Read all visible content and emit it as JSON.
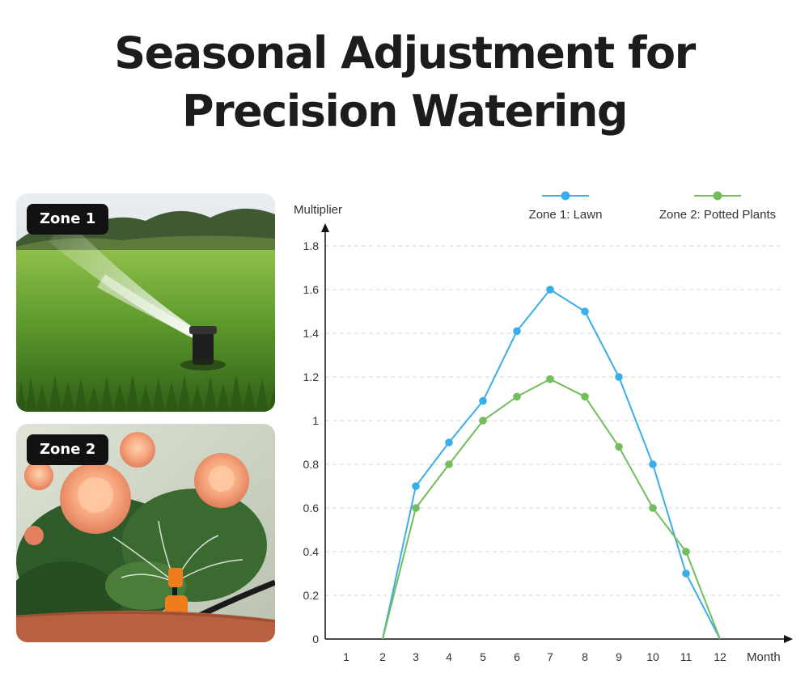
{
  "title_line1": "Seasonal Adjustment for",
  "title_line2": "Precision Watering",
  "zones": [
    {
      "badge": "Zone 1",
      "scene": "lawn sprinkler spraying water over grass"
    },
    {
      "badge": "Zone 2",
      "scene": "drip sprayer watering potted roses"
    }
  ],
  "chart_data": {
    "type": "line",
    "xlabel": "Month",
    "ylabel": "Multiplier",
    "x": [
      1,
      2,
      3,
      4,
      5,
      6,
      7,
      8,
      9,
      10,
      11,
      12
    ],
    "ylim": [
      0,
      1.8
    ],
    "yticks": [
      "0",
      "0.2",
      "0.4",
      "0.6",
      "0.8",
      "1",
      "1.2",
      "1.4",
      "1.6",
      "1.8"
    ],
    "grid": true,
    "legend": "top-right",
    "series": [
      {
        "name": "Zone 1: Lawn",
        "color": "#3aaee8",
        "points": [
          [
            2,
            0
          ],
          [
            3,
            0.7
          ],
          [
            4,
            0.9
          ],
          [
            5,
            1.09
          ],
          [
            6,
            1.41
          ],
          [
            7,
            1.6
          ],
          [
            8,
            1.5
          ],
          [
            9,
            1.2
          ],
          [
            10,
            0.8
          ],
          [
            11,
            0.3
          ],
          [
            12,
            0
          ]
        ],
        "markers": [
          3,
          4,
          5,
          6,
          7,
          8,
          9,
          10,
          11
        ]
      },
      {
        "name": "Zone 2: Potted Plants",
        "color": "#72bd5c",
        "points": [
          [
            2,
            0
          ],
          [
            3,
            0.6
          ],
          [
            4,
            0.8
          ],
          [
            5,
            1.0
          ],
          [
            6,
            1.11
          ],
          [
            7,
            1.19
          ],
          [
            8,
            1.11
          ],
          [
            9,
            0.88
          ],
          [
            10,
            0.6
          ],
          [
            11,
            0.4
          ],
          [
            12,
            0
          ]
        ],
        "markers": [
          3,
          4,
          5,
          6,
          7,
          8,
          9,
          10,
          11
        ]
      }
    ]
  }
}
